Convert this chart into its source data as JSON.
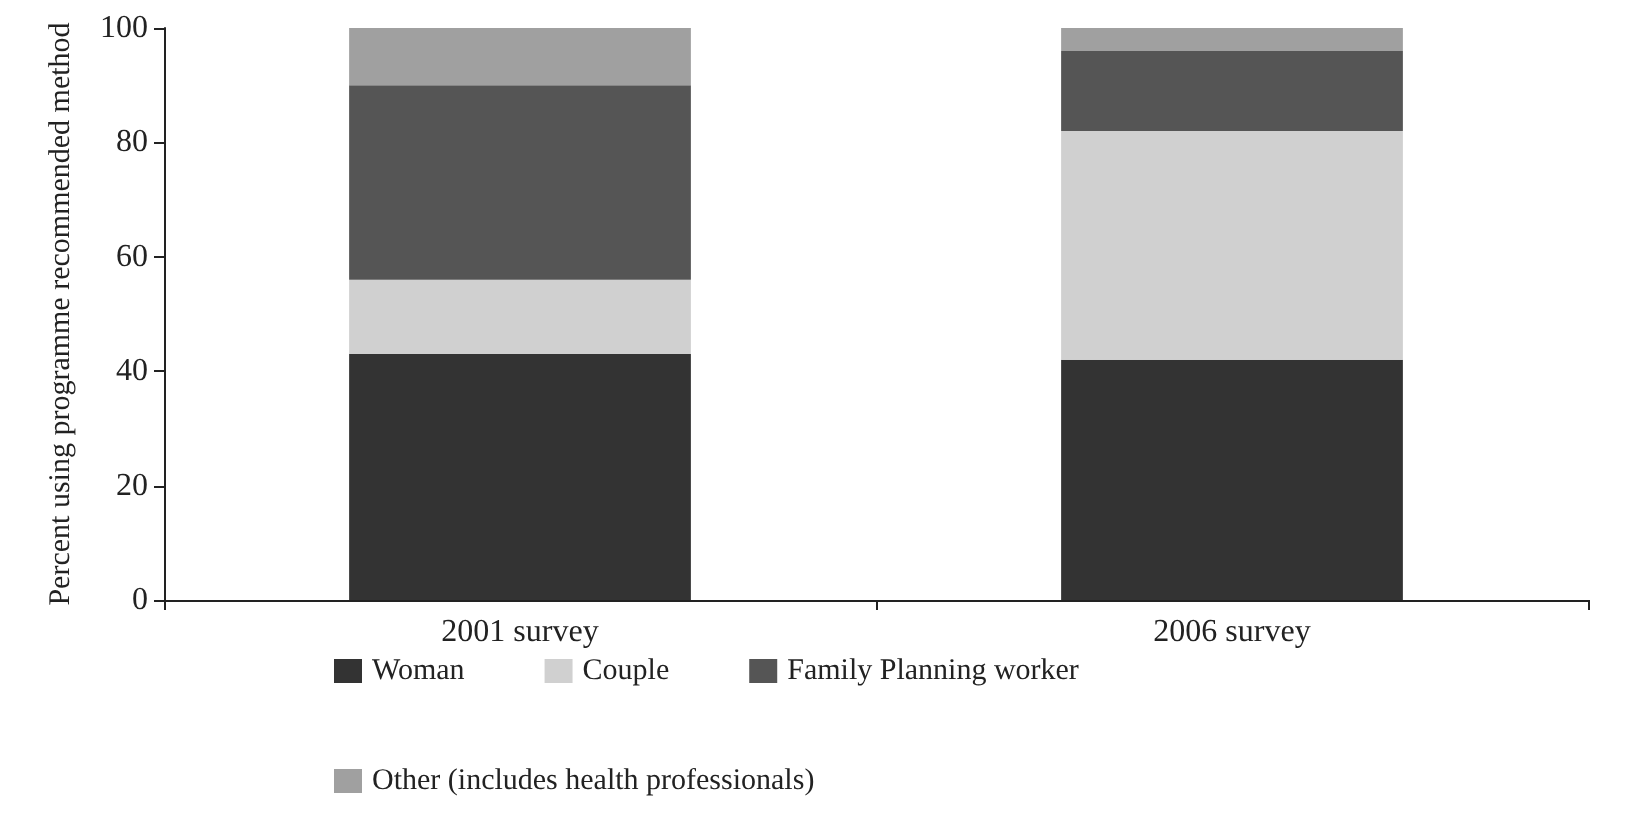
{
  "chart_data": {
    "type": "bar",
    "stacked": true,
    "ylabel": "Percent using programme recommended method",
    "categories": [
      "2001 survey",
      "2006 survey"
    ],
    "series": [
      {
        "name": "Woman",
        "color": "#333333",
        "values": [
          43,
          42
        ]
      },
      {
        "name": "Couple",
        "color": "#d0d0d0",
        "values": [
          13,
          40
        ]
      },
      {
        "name": "Family Planning worker",
        "color": "#555555",
        "values": [
          34,
          14
        ]
      },
      {
        "name": "Other (includes health professionals)",
        "color": "#a0a0a0",
        "values": [
          10,
          4
        ]
      }
    ],
    "ylim": [
      0,
      100
    ],
    "yticks": [
      0,
      20,
      40,
      60,
      80,
      100
    ],
    "grid": false,
    "legend": "bottom"
  }
}
